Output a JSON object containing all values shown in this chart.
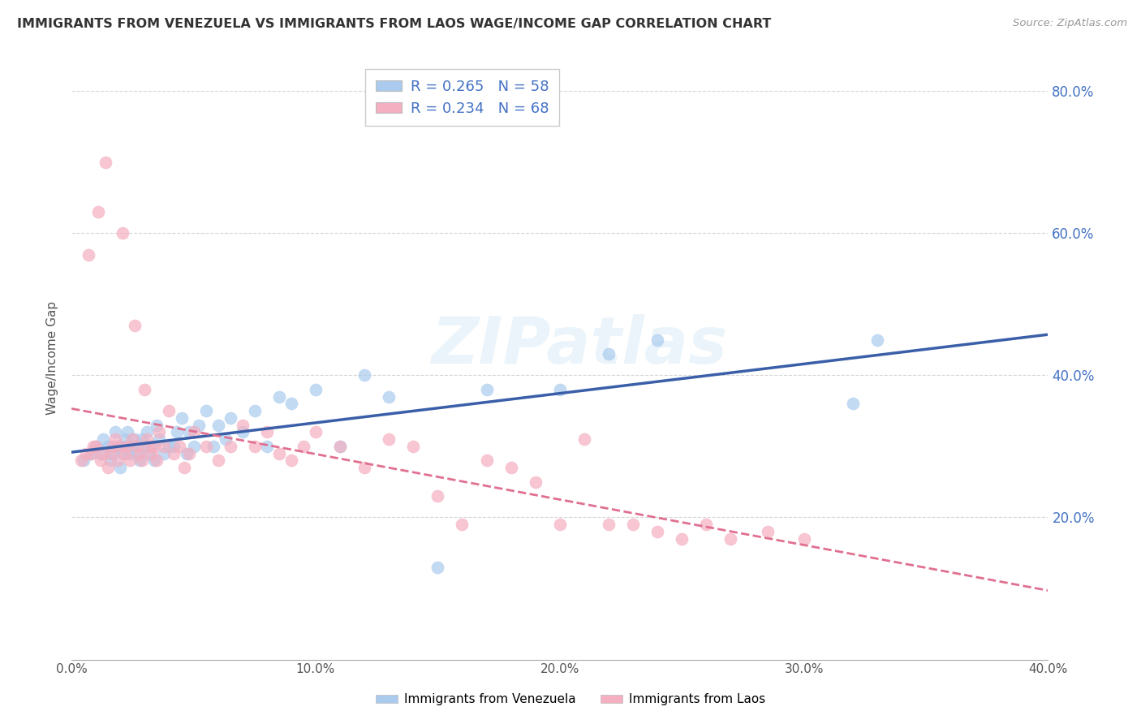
{
  "title": "IMMIGRANTS FROM VENEZUELA VS IMMIGRANTS FROM LAOS WAGE/INCOME GAP CORRELATION CHART",
  "source": "Source: ZipAtlas.com",
  "ylabel": "Wage/Income Gap",
  "xlim": [
    0.0,
    0.4
  ],
  "ylim": [
    0.0,
    0.85
  ],
  "xtick_labels": [
    "0.0%",
    "",
    "10.0%",
    "",
    "20.0%",
    "",
    "30.0%",
    "",
    "40.0%"
  ],
  "xtick_vals": [
    0.0,
    0.05,
    0.1,
    0.15,
    0.2,
    0.25,
    0.3,
    0.35,
    0.4
  ],
  "ytick_labels": [
    "20.0%",
    "40.0%",
    "60.0%",
    "80.0%"
  ],
  "ytick_vals": [
    0.2,
    0.4,
    0.6,
    0.8
  ],
  "watermark": "ZIPatlas",
  "legend_R1": "R = 0.265",
  "legend_N1": "N = 58",
  "legend_R2": "R = 0.234",
  "legend_N2": "N = 68",
  "color_venezuela": "#aacbee",
  "color_laos": "#f4afc0",
  "trendline_color_venezuela": "#3a5fa8",
  "trendline_color_laos": "#e07090",
  "venezuela_x": [
    0.005,
    0.008,
    0.01,
    0.012,
    0.013,
    0.015,
    0.016,
    0.017,
    0.018,
    0.019,
    0.02,
    0.021,
    0.022,
    0.022,
    0.023,
    0.024,
    0.025,
    0.026,
    0.027,
    0.028,
    0.029,
    0.03,
    0.031,
    0.032,
    0.033,
    0.034,
    0.035,
    0.036,
    0.038,
    0.04,
    0.042,
    0.043,
    0.045,
    0.047,
    0.048,
    0.05,
    0.052,
    0.055,
    0.058,
    0.06,
    0.063,
    0.065,
    0.07,
    0.075,
    0.08,
    0.085,
    0.09,
    0.1,
    0.11,
    0.12,
    0.13,
    0.15,
    0.17,
    0.2,
    0.22,
    0.24,
    0.32,
    0.33
  ],
  "venezuela_y": [
    0.28,
    0.29,
    0.3,
    0.29,
    0.31,
    0.3,
    0.28,
    0.29,
    0.32,
    0.3,
    0.27,
    0.29,
    0.3,
    0.31,
    0.32,
    0.29,
    0.3,
    0.31,
    0.29,
    0.28,
    0.31,
    0.3,
    0.32,
    0.29,
    0.3,
    0.28,
    0.33,
    0.31,
    0.29,
    0.3,
    0.3,
    0.32,
    0.34,
    0.29,
    0.32,
    0.3,
    0.33,
    0.35,
    0.3,
    0.33,
    0.31,
    0.34,
    0.32,
    0.35,
    0.3,
    0.37,
    0.36,
    0.38,
    0.3,
    0.4,
    0.37,
    0.13,
    0.38,
    0.38,
    0.43,
    0.45,
    0.36,
    0.45
  ],
  "laos_x": [
    0.004,
    0.006,
    0.007,
    0.008,
    0.009,
    0.01,
    0.011,
    0.012,
    0.013,
    0.014,
    0.015,
    0.016,
    0.017,
    0.018,
    0.019,
    0.02,
    0.021,
    0.022,
    0.023,
    0.024,
    0.025,
    0.026,
    0.027,
    0.028,
    0.029,
    0.03,
    0.031,
    0.032,
    0.033,
    0.034,
    0.035,
    0.036,
    0.038,
    0.04,
    0.042,
    0.044,
    0.046,
    0.048,
    0.05,
    0.055,
    0.06,
    0.065,
    0.07,
    0.075,
    0.08,
    0.085,
    0.09,
    0.095,
    0.1,
    0.11,
    0.12,
    0.13,
    0.14,
    0.15,
    0.16,
    0.17,
    0.18,
    0.19,
    0.2,
    0.21,
    0.22,
    0.23,
    0.24,
    0.25,
    0.26,
    0.27,
    0.285,
    0.3
  ],
  "laos_y": [
    0.28,
    0.29,
    0.57,
    0.29,
    0.3,
    0.3,
    0.63,
    0.28,
    0.29,
    0.7,
    0.27,
    0.29,
    0.3,
    0.31,
    0.28,
    0.3,
    0.6,
    0.29,
    0.3,
    0.28,
    0.31,
    0.47,
    0.3,
    0.29,
    0.28,
    0.38,
    0.31,
    0.3,
    0.29,
    0.3,
    0.28,
    0.32,
    0.3,
    0.35,
    0.29,
    0.3,
    0.27,
    0.29,
    0.32,
    0.3,
    0.28,
    0.3,
    0.33,
    0.3,
    0.32,
    0.29,
    0.28,
    0.3,
    0.32,
    0.3,
    0.27,
    0.31,
    0.3,
    0.23,
    0.19,
    0.28,
    0.27,
    0.25,
    0.19,
    0.31,
    0.19,
    0.19,
    0.18,
    0.17,
    0.19,
    0.17,
    0.18,
    0.17
  ]
}
